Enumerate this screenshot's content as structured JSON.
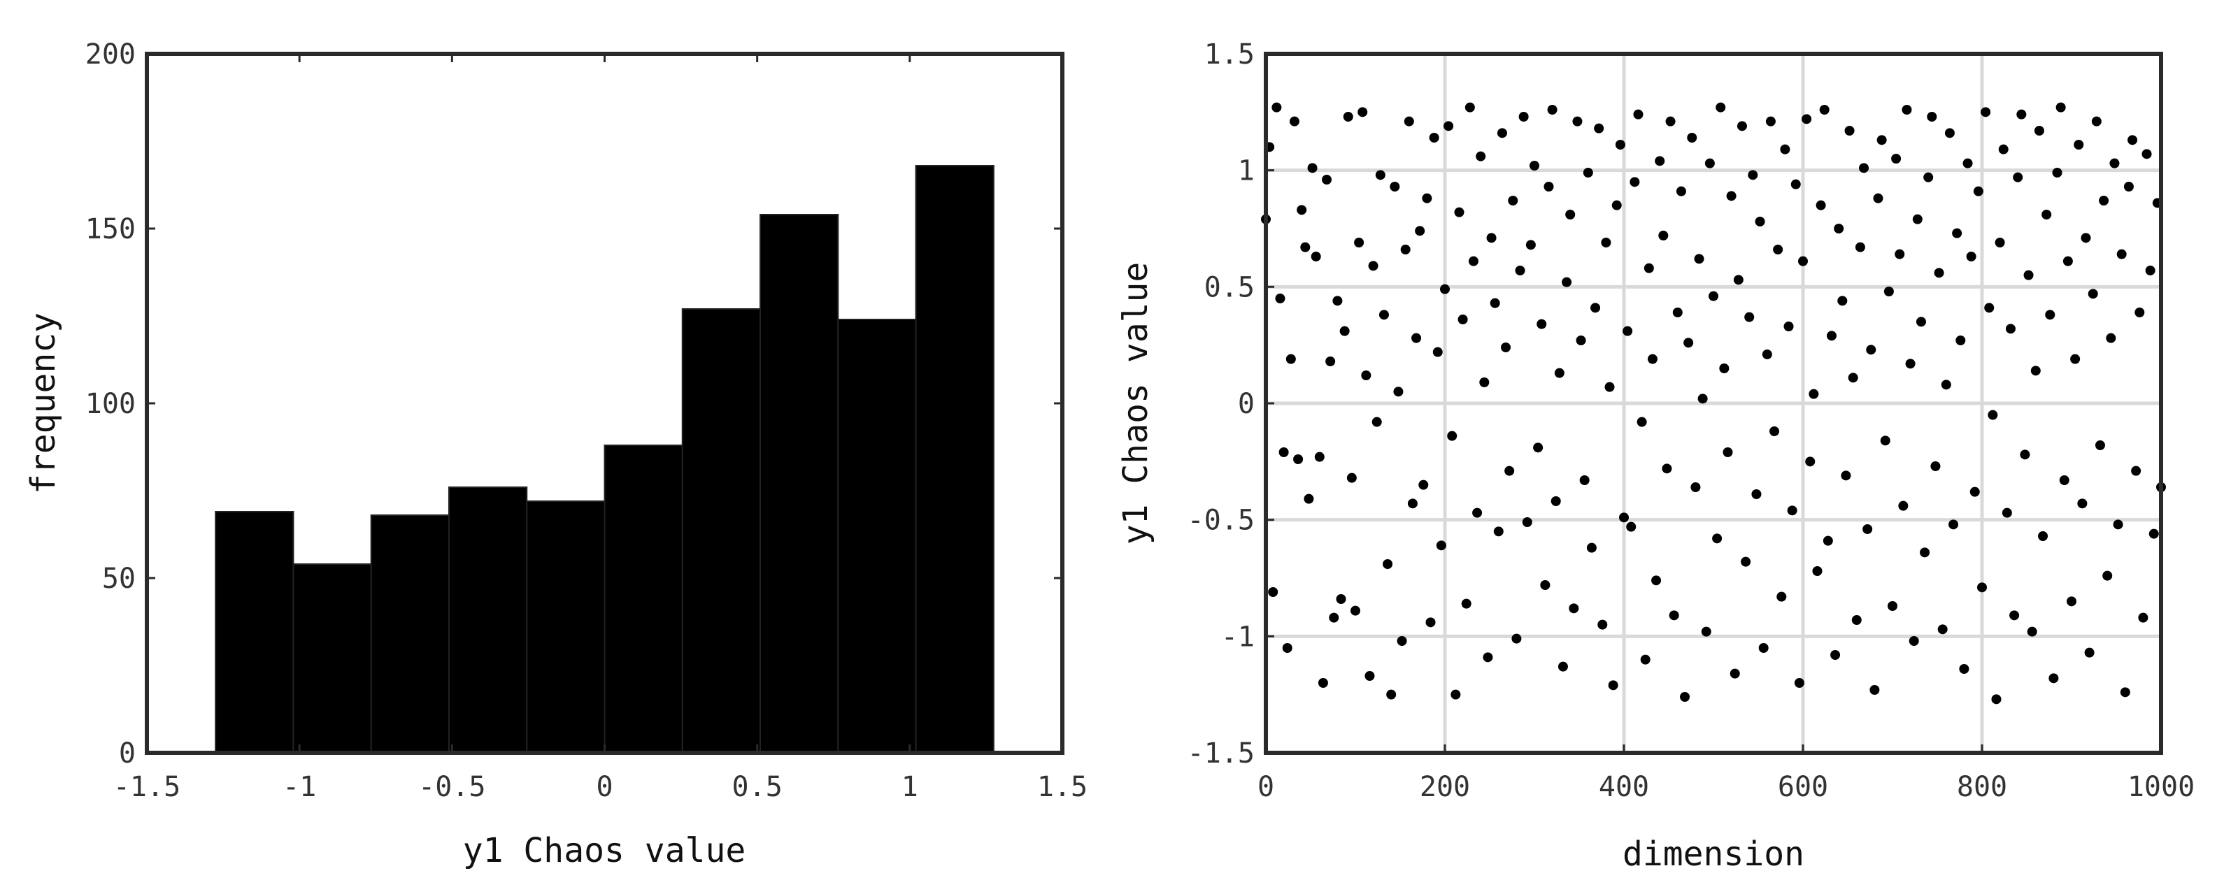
{
  "chart_data": [
    {
      "type": "bar",
      "subtype": "histogram",
      "xlabel": "y1 Chaos value",
      "ylabel": "frequency",
      "xlim": [
        -1.5,
        1.5
      ],
      "ylim": [
        0,
        200
      ],
      "xticks": [
        "-1.5",
        "-1",
        "-0.5",
        "0",
        "0.5",
        "1",
        "1.5"
      ],
      "yticks": [
        "0",
        "50",
        "100",
        "150",
        "200"
      ],
      "grid": false,
      "bar_color": "#000000",
      "bins": [
        {
          "x0": -1.275,
          "x1": -1.02,
          "value": 69
        },
        {
          "x0": -1.02,
          "x1": -0.765,
          "value": 54
        },
        {
          "x0": -0.765,
          "x1": -0.51,
          "value": 68
        },
        {
          "x0": -0.51,
          "x1": -0.255,
          "value": 76
        },
        {
          "x0": -0.255,
          "x1": 0.0,
          "value": 72
        },
        {
          "x0": 0.0,
          "x1": 0.255,
          "value": 88
        },
        {
          "x0": 0.255,
          "x1": 0.51,
          "value": 127
        },
        {
          "x0": 0.51,
          "x1": 0.765,
          "value": 154
        },
        {
          "x0": 0.765,
          "x1": 1.02,
          "value": 124
        },
        {
          "x0": 1.02,
          "x1": 1.275,
          "value": 168
        }
      ]
    },
    {
      "type": "scatter",
      "xlabel": "dimension",
      "ylabel": "y1 Chaos value",
      "xlim": [
        0,
        1000
      ],
      "ylim": [
        -1.5,
        1.5
      ],
      "xticks": [
        "0",
        "200",
        "400",
        "600",
        "800",
        "1000"
      ],
      "yticks": [
        "-1.5",
        "-1",
        "-0.5",
        "0",
        "0.5",
        "1",
        "1.5"
      ],
      "grid": true,
      "marker_color": "#000000",
      "points": [
        [
          0,
          0.79
        ],
        [
          4,
          1.1
        ],
        [
          8,
          -0.81
        ],
        [
          12,
          1.27
        ],
        [
          16,
          0.45
        ],
        [
          20,
          -0.21
        ],
        [
          24,
          -1.05
        ],
        [
          28,
          0.19
        ],
        [
          32,
          1.21
        ],
        [
          36,
          -0.24
        ],
        [
          40,
          0.83
        ],
        [
          44,
          0.67
        ],
        [
          48,
          -0.41
        ],
        [
          52,
          1.01
        ],
        [
          56,
          0.63
        ],
        [
          60,
          -0.23
        ],
        [
          64,
          -1.2
        ],
        [
          68,
          0.96
        ],
        [
          72,
          0.18
        ],
        [
          76,
          -0.92
        ],
        [
          80,
          0.44
        ],
        [
          84,
          -0.84
        ],
        [
          88,
          0.31
        ],
        [
          92,
          1.23
        ],
        [
          96,
          -0.32
        ],
        [
          100,
          -0.89
        ],
        [
          104,
          0.69
        ],
        [
          108,
          1.25
        ],
        [
          112,
          0.12
        ],
        [
          116,
          -1.17
        ],
        [
          120,
          0.59
        ],
        [
          124,
          -0.08
        ],
        [
          128,
          0.98
        ],
        [
          132,
          0.38
        ],
        [
          136,
          -0.69
        ],
        [
          140,
          -1.25
        ],
        [
          144,
          0.93
        ],
        [
          148,
          0.05
        ],
        [
          152,
          -1.02
        ],
        [
          156,
          0.66
        ],
        [
          160,
          1.21
        ],
        [
          164,
          -0.43
        ],
        [
          168,
          0.28
        ],
        [
          172,
          0.74
        ],
        [
          176,
          -0.35
        ],
        [
          180,
          0.88
        ],
        [
          184,
          -0.94
        ],
        [
          188,
          1.14
        ],
        [
          192,
          0.22
        ],
        [
          196,
          -0.61
        ],
        [
          200,
          0.49
        ],
        [
          204,
          1.19
        ],
        [
          208,
          -0.14
        ],
        [
          212,
          -1.25
        ],
        [
          216,
          0.82
        ],
        [
          220,
          0.36
        ],
        [
          224,
          -0.86
        ],
        [
          228,
          1.27
        ],
        [
          232,
          0.61
        ],
        [
          236,
          -0.47
        ],
        [
          240,
          1.06
        ],
        [
          244,
          0.09
        ],
        [
          248,
          -1.09
        ],
        [
          252,
          0.71
        ],
        [
          256,
          0.43
        ],
        [
          260,
          -0.55
        ],
        [
          264,
          1.16
        ],
        [
          268,
          0.24
        ],
        [
          272,
          -0.29
        ],
        [
          276,
          0.87
        ],
        [
          280,
          -1.01
        ],
        [
          284,
          0.57
        ],
        [
          288,
          1.23
        ],
        [
          292,
          -0.51
        ],
        [
          296,
          0.68
        ],
        [
          300,
          1.02
        ],
        [
          304,
          -0.19
        ],
        [
          308,
          0.34
        ],
        [
          312,
          -0.78
        ],
        [
          316,
          0.93
        ],
        [
          320,
          1.26
        ],
        [
          324,
          -0.42
        ],
        [
          328,
          0.13
        ],
        [
          332,
          -1.13
        ],
        [
          336,
          0.52
        ],
        [
          340,
          0.81
        ],
        [
          344,
          -0.88
        ],
        [
          348,
          1.21
        ],
        [
          352,
          0.27
        ],
        [
          356,
          -0.33
        ],
        [
          360,
          0.99
        ],
        [
          364,
          -0.62
        ],
        [
          368,
          0.41
        ],
        [
          372,
          1.18
        ],
        [
          376,
          -0.95
        ],
        [
          380,
          0.69
        ],
        [
          384,
          0.07
        ],
        [
          388,
          -1.21
        ],
        [
          392,
          0.85
        ],
        [
          396,
          1.11
        ],
        [
          400,
          -0.49
        ],
        [
          404,
          0.31
        ],
        [
          408,
          -0.53
        ],
        [
          412,
          0.95
        ],
        [
          416,
          1.24
        ],
        [
          420,
          -0.08
        ],
        [
          424,
          -1.1
        ],
        [
          428,
          0.58
        ],
        [
          432,
          0.19
        ],
        [
          436,
          -0.76
        ],
        [
          440,
          1.04
        ],
        [
          444,
          0.72
        ],
        [
          448,
          -0.28
        ],
        [
          452,
          1.21
        ],
        [
          456,
          -0.91
        ],
        [
          460,
          0.39
        ],
        [
          464,
          0.91
        ],
        [
          468,
          -1.26
        ],
        [
          472,
          0.26
        ],
        [
          476,
          1.14
        ],
        [
          480,
          -0.36
        ],
        [
          484,
          0.62
        ],
        [
          488,
          0.02
        ],
        [
          492,
          -0.98
        ],
        [
          496,
          1.03
        ],
        [
          500,
          0.46
        ],
        [
          504,
          -0.58
        ],
        [
          508,
          1.27
        ],
        [
          512,
          0.15
        ],
        [
          516,
          -0.21
        ],
        [
          520,
          0.89
        ],
        [
          524,
          -1.16
        ],
        [
          528,
          0.53
        ],
        [
          532,
          1.19
        ],
        [
          536,
          -0.68
        ],
        [
          540,
          0.37
        ],
        [
          544,
          0.98
        ],
        [
          548,
          -0.39
        ],
        [
          552,
          0.78
        ],
        [
          556,
          -1.05
        ],
        [
          560,
          0.21
        ],
        [
          564,
          1.21
        ],
        [
          568,
          -0.12
        ],
        [
          572,
          0.66
        ],
        [
          576,
          -0.83
        ],
        [
          580,
          1.09
        ],
        [
          584,
          0.33
        ],
        [
          588,
          -0.46
        ],
        [
          592,
          0.94
        ],
        [
          596,
          -1.2
        ],
        [
          600,
          0.61
        ],
        [
          604,
          1.22
        ],
        [
          608,
          -0.25
        ],
        [
          612,
          0.04
        ],
        [
          616,
          -0.72
        ],
        [
          620,
          0.85
        ],
        [
          624,
          1.26
        ],
        [
          628,
          -0.59
        ],
        [
          632,
          0.29
        ],
        [
          636,
          -1.08
        ],
        [
          640,
          0.75
        ],
        [
          644,
          0.44
        ],
        [
          648,
          -0.31
        ],
        [
          652,
          1.17
        ],
        [
          656,
          0.11
        ],
        [
          660,
          -0.93
        ],
        [
          664,
          0.67
        ],
        [
          668,
          1.01
        ],
        [
          672,
          -0.54
        ],
        [
          676,
          0.23
        ],
        [
          680,
          -1.23
        ],
        [
          684,
          0.88
        ],
        [
          688,
          1.13
        ],
        [
          692,
          -0.16
        ],
        [
          696,
          0.48
        ],
        [
          700,
          -0.87
        ],
        [
          704,
          1.05
        ],
        [
          708,
          0.64
        ],
        [
          712,
          -0.44
        ],
        [
          716,
          1.26
        ],
        [
          720,
          0.17
        ],
        [
          724,
          -1.02
        ],
        [
          728,
          0.79
        ],
        [
          732,
          0.35
        ],
        [
          736,
          -0.64
        ],
        [
          740,
          0.97
        ],
        [
          744,
          1.23
        ],
        [
          748,
          -0.27
        ],
        [
          752,
          0.56
        ],
        [
          756,
          -0.97
        ],
        [
          760,
          0.08
        ],
        [
          764,
          1.16
        ],
        [
          768,
          -0.52
        ],
        [
          772,
          0.73
        ],
        [
          776,
          0.27
        ],
        [
          780,
          -1.14
        ],
        [
          784,
          1.03
        ],
        [
          788,
          0.63
        ],
        [
          792,
          -0.38
        ],
        [
          796,
          0.91
        ],
        [
          800,
          -0.79
        ],
        [
          804,
          1.25
        ],
        [
          808,
          0.41
        ],
        [
          812,
          -0.05
        ],
        [
          816,
          -1.27
        ],
        [
          820,
          0.69
        ],
        [
          824,
          1.09
        ],
        [
          828,
          -0.47
        ],
        [
          832,
          0.32
        ],
        [
          836,
          -0.91
        ],
        [
          840,
          0.97
        ],
        [
          844,
          1.24
        ],
        [
          848,
          -0.22
        ],
        [
          852,
          0.55
        ],
        [
          856,
          -0.98
        ],
        [
          860,
          0.14
        ],
        [
          864,
          1.17
        ],
        [
          868,
          -0.57
        ],
        [
          872,
          0.81
        ],
        [
          876,
          0.38
        ],
        [
          880,
          -1.18
        ],
        [
          884,
          0.99
        ],
        [
          888,
          1.27
        ],
        [
          892,
          -0.33
        ],
        [
          896,
          0.61
        ],
        [
          900,
          -0.85
        ],
        [
          904,
          0.19
        ],
        [
          908,
          1.11
        ],
        [
          912,
          -0.43
        ],
        [
          916,
          0.71
        ],
        [
          920,
          -1.07
        ],
        [
          924,
          0.47
        ],
        [
          928,
          1.21
        ],
        [
          932,
          -0.18
        ],
        [
          936,
          0.87
        ],
        [
          940,
          -0.74
        ],
        [
          944,
          0.28
        ],
        [
          948,
          1.03
        ],
        [
          952,
          -0.52
        ],
        [
          956,
          0.64
        ],
        [
          960,
          -1.24
        ],
        [
          964,
          0.93
        ],
        [
          968,
          1.13
        ],
        [
          972,
          -0.29
        ],
        [
          976,
          0.39
        ],
        [
          980,
          -0.92
        ],
        [
          984,
          1.07
        ],
        [
          988,
          0.57
        ],
        [
          992,
          -0.56
        ],
        [
          996,
          0.86
        ],
        [
          1000,
          -0.36
        ]
      ]
    }
  ]
}
